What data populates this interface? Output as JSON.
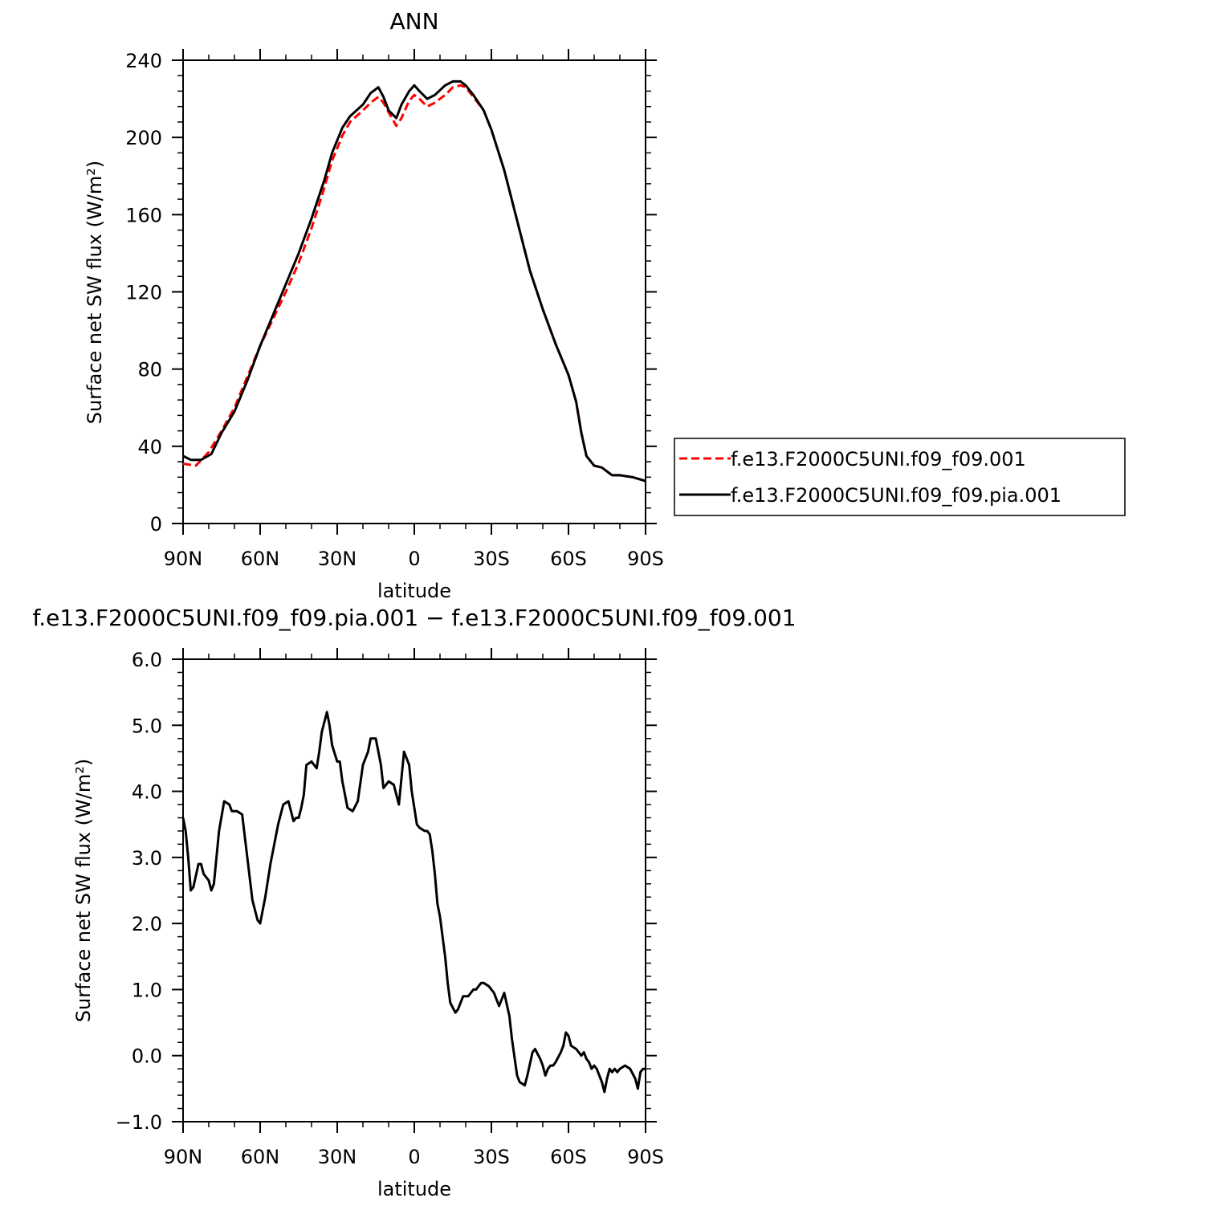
{
  "chart_data": [
    {
      "type": "line",
      "title": "ANN",
      "xlabel": "latitude",
      "ylabel": "Surface net SW flux (W/m²)",
      "xlim": [
        90,
        -90
      ],
      "ylim": [
        0,
        240
      ],
      "xticks": [
        90,
        60,
        30,
        0,
        -30,
        -60,
        -90
      ],
      "xtick_labels": [
        "90N",
        "60N",
        "30N",
        "0",
        "30S",
        "60S",
        "90S"
      ],
      "yticks": [
        0,
        40,
        80,
        120,
        160,
        200,
        240
      ],
      "ytick_labels": [
        "0",
        "40",
        "80",
        "120",
        "160",
        "200",
        "240"
      ],
      "legend_position": "right",
      "series": [
        {
          "name": "f.e13.F2000C5UNI.f09_f09.001",
          "color": "#ff0000",
          "dash": "dashed",
          "x": [
            90,
            85,
            80,
            75,
            70,
            65,
            60,
            55,
            50,
            45,
            40,
            35,
            32,
            28,
            25,
            20,
            17,
            14,
            12,
            10,
            7,
            5,
            2,
            0,
            -2,
            -5,
            -8,
            -12,
            -15,
            -18,
            -20,
            -23,
            -27,
            -30,
            -35,
            -40,
            -45,
            -50,
            -55,
            -60,
            -63,
            -65,
            -67,
            -70,
            -73,
            -77,
            -80,
            -85,
            -90
          ],
          "values": [
            31,
            30,
            37,
            48,
            60,
            76,
            92,
            106,
            120,
            135,
            153,
            174,
            188,
            201,
            208,
            214,
            218,
            221,
            218,
            213,
            206,
            210,
            219,
            222,
            220,
            216,
            218,
            222,
            226,
            227,
            226,
            221,
            214,
            204,
            183,
            157,
            131,
            111,
            93,
            77,
            63,
            47,
            35,
            30,
            29,
            25,
            25,
            24,
            22
          ]
        },
        {
          "name": "f.e13.F2000C5UNI.f09_f09.pia.001",
          "color": "#000000",
          "dash": "solid",
          "x": [
            90,
            87,
            83,
            79,
            75,
            70,
            65,
            60,
            55,
            50,
            45,
            40,
            35,
            32,
            28,
            25,
            20,
            17,
            14,
            12,
            10,
            7,
            5,
            2,
            0,
            -2,
            -5,
            -8,
            -12,
            -15,
            -18,
            -20,
            -23,
            -27,
            -30,
            -35,
            -40,
            -45,
            -50,
            -55,
            -60,
            -63,
            -65,
            -67,
            -70,
            -73,
            -77,
            -80,
            -85,
            -90
          ],
          "values": [
            35,
            33,
            33,
            36,
            47,
            58,
            74,
            92,
            108,
            124,
            140,
            158,
            178,
            192,
            205,
            211,
            217,
            223,
            226,
            221,
            214,
            210,
            217,
            224,
            227,
            224,
            220,
            222,
            227,
            229,
            229,
            227,
            222,
            214,
            204,
            183,
            157,
            131,
            111,
            93,
            77,
            63,
            47,
            35,
            30,
            29,
            25,
            25,
            24,
            22
          ]
        }
      ]
    },
    {
      "type": "line",
      "title": "f.e13.F2000C5UNI.f09_f09.pia.001 − f.e13.F2000C5UNI.f09_f09.001",
      "xlabel": "latitude",
      "ylabel": "Surface net SW flux (W/m²)",
      "xlim": [
        90,
        -90
      ],
      "ylim": [
        -1.0,
        6.0
      ],
      "xticks": [
        90,
        60,
        30,
        0,
        -30,
        -60,
        -90
      ],
      "xtick_labels": [
        "90N",
        "60N",
        "30N",
        "0",
        "30S",
        "60S",
        "90S"
      ],
      "yticks": [
        -1,
        0,
        1,
        2,
        3,
        4,
        5,
        6
      ],
      "ytick_labels": [
        "−1.0",
        "0.0",
        "1.0",
        "2.0",
        "3.0",
        "4.0",
        "5.0",
        "6.0"
      ],
      "series": [
        {
          "color": "#000000",
          "dash": "solid",
          "x": [
            90,
            89,
            88,
            87,
            86,
            84,
            83,
            82,
            81,
            80,
            79,
            78,
            77,
            76,
            74,
            72,
            71,
            70,
            69,
            67,
            65,
            63,
            61,
            60,
            58,
            56,
            55,
            53,
            51,
            49,
            48,
            47,
            46,
            45,
            44,
            43,
            42,
            40,
            38,
            37,
            36,
            34,
            33,
            32,
            30,
            29,
            28,
            26,
            24,
            22,
            20,
            18,
            17,
            15,
            13,
            12,
            10,
            8,
            6,
            5,
            4,
            2,
            1,
            0,
            -1,
            -2,
            -4,
            -5,
            -6,
            -7,
            -8,
            -9,
            -10,
            -12,
            -13,
            -14,
            -16,
            -17,
            -18,
            -19,
            -21,
            -22,
            -23,
            -24,
            -25,
            -26,
            -27,
            -29,
            -30,
            -31,
            -32,
            -33,
            -35,
            -37,
            -38,
            -40,
            -41,
            -43,
            -44,
            -46,
            -47,
            -49,
            -50,
            -51,
            -52,
            -53,
            -54,
            -55,
            -57,
            -58,
            -59,
            -60,
            -61,
            -63,
            -65,
            -66,
            -67,
            -68,
            -69,
            -70,
            -71,
            -72,
            -73,
            -74,
            -75,
            -76,
            -77,
            -78,
            -79,
            -80,
            -82,
            -84,
            -86,
            -87,
            -88,
            -89,
            -90
          ],
          "values": [
            3.6,
            3.4,
            3.0,
            2.5,
            2.55,
            2.9,
            2.9,
            2.75,
            2.7,
            2.65,
            2.5,
            2.6,
            3.0,
            3.4,
            3.85,
            3.8,
            3.7,
            3.7,
            3.7,
            3.65,
            3.0,
            2.35,
            2.05,
            2.0,
            2.4,
            2.9,
            3.1,
            3.5,
            3.8,
            3.85,
            3.7,
            3.55,
            3.6,
            3.6,
            3.75,
            3.95,
            4.4,
            4.45,
            4.35,
            4.6,
            4.9,
            5.2,
            5.0,
            4.7,
            4.45,
            4.45,
            4.15,
            3.75,
            3.7,
            3.85,
            4.4,
            4.6,
            4.8,
            4.8,
            4.4,
            4.05,
            4.15,
            4.1,
            3.8,
            4.2,
            4.6,
            4.4,
            4.0,
            3.75,
            3.5,
            3.45,
            3.4,
            3.4,
            3.35,
            3.1,
            2.75,
            2.3,
            2.1,
            1.5,
            1.1,
            0.8,
            0.65,
            0.7,
            0.8,
            0.9,
            0.9,
            0.95,
            1.0,
            1.0,
            1.05,
            1.1,
            1.1,
            1.05,
            1.0,
            0.95,
            0.85,
            0.75,
            0.95,
            0.6,
            0.25,
            -0.3,
            -0.4,
            -0.45,
            -0.3,
            0.05,
            0.1,
            -0.05,
            -0.15,
            -0.3,
            -0.2,
            -0.15,
            -0.15,
            -0.1,
            0.05,
            0.15,
            0.35,
            0.3,
            0.15,
            0.1,
            0.0,
            0.05,
            -0.05,
            -0.1,
            -0.2,
            -0.15,
            -0.2,
            -0.3,
            -0.4,
            -0.55,
            -0.35,
            -0.2,
            -0.25,
            -0.2,
            -0.25,
            -0.2,
            -0.15,
            -0.2,
            -0.35,
            -0.5,
            -0.25,
            -0.2,
            -0.2
          ]
        }
      ]
    }
  ]
}
